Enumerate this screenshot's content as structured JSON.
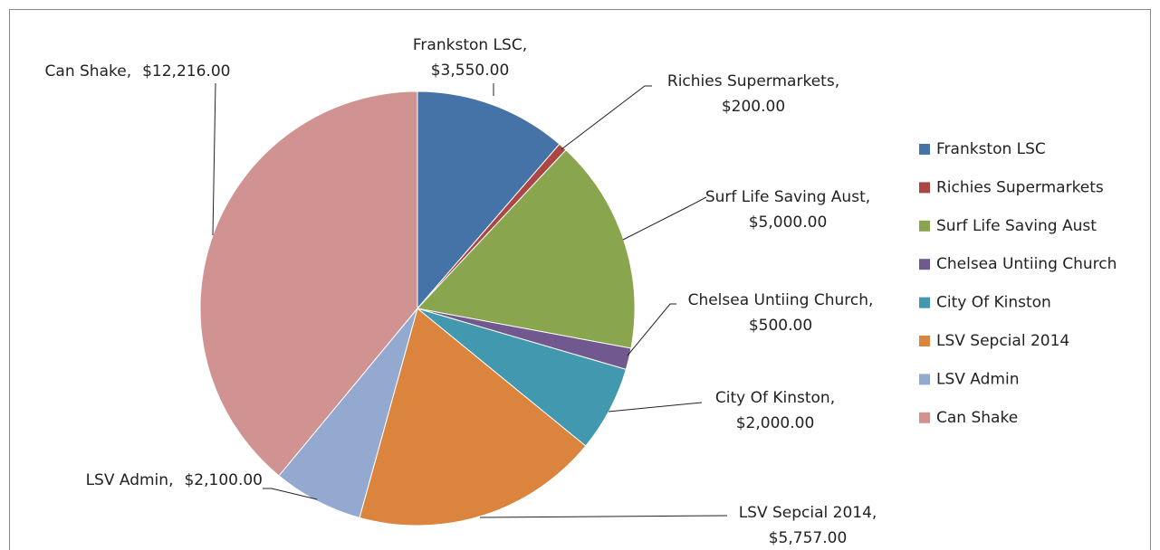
{
  "chart_data": {
    "type": "pie",
    "categories": [
      "Frankston LSC",
      "Richies Supermarkets",
      "Surf Life Saving Aust",
      "Chelsea Untiing Church",
      "City Of Kinston",
      "LSV Sepcial 2014",
      "LSV Admin",
      "Can Shake"
    ],
    "values": [
      3550,
      200,
      5000,
      500,
      2000,
      5757,
      2100,
      12216
    ],
    "value_labels": [
      "$3,550.00",
      "$200.00",
      "$5,000.00",
      "$500.00",
      "$2,000.00",
      "$5,757.00",
      "$2,100.00",
      "$12,216.00"
    ],
    "label_separator": ",",
    "colors": [
      "#4572A7",
      "#AA4643",
      "#89A54E",
      "#71588F",
      "#4198AF",
      "#DB843D",
      "#93A9CF",
      "#D19392"
    ],
    "legend": "right"
  }
}
